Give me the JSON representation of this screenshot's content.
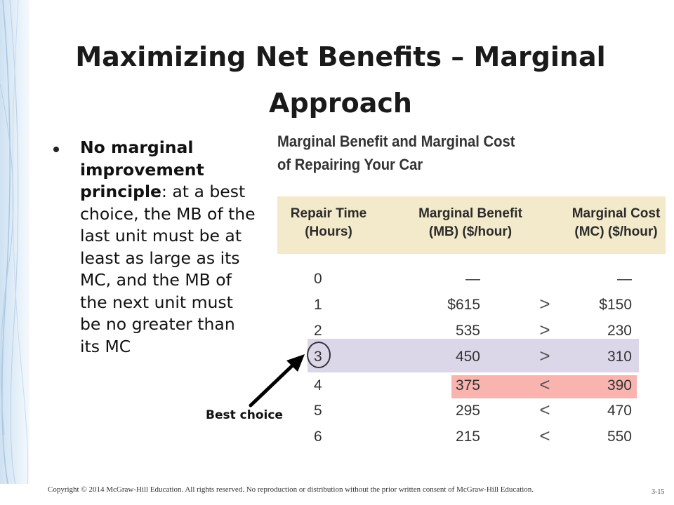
{
  "slide": {
    "title_line1": "Maximizing Net Benefits – Marginal",
    "title_line2": "Approach",
    "bullet": {
      "bold_part": "No marginal improvement principle",
      "rest": ": at a best choice, the MB of the last unit must be at least as large as its MC, and the MB of the next unit must be no greater than its MC"
    },
    "annotation": "Best choice",
    "copyright": "Copyright © 2014 McGraw-Hill Education. All rights reserved. No reproduction or distribution without the prior written consent of McGraw-Hill Education.",
    "page_number": "3-15"
  },
  "table": {
    "title_line1": "Marginal Benefit and Marginal Cost",
    "title_line2": "of Repairing Your Car",
    "headers": {
      "time_line1": "Repair Time",
      "time_line2": "(Hours)",
      "mb_line1": "Marginal Benefit",
      "mb_line2": "(MB) ($/hour)",
      "mc_line1": "Marginal Cost",
      "mc_line2": "(MC) ($/hour)"
    },
    "rows": [
      {
        "time": "0",
        "mb": "—",
        "op": "",
        "mc": "—"
      },
      {
        "time": "1",
        "mb": "$615",
        "op": ">",
        "mc": "$150"
      },
      {
        "time": "2",
        "mb": "535",
        "op": ">",
        "mc": "230"
      },
      {
        "time": "3",
        "mb": "450",
        "op": ">",
        "mc": "310"
      },
      {
        "time": "4",
        "mb": "375",
        "op": "<",
        "mc": "390"
      },
      {
        "time": "5",
        "mb": "295",
        "op": "<",
        "mc": "470"
      },
      {
        "time": "6",
        "mb": "215",
        "op": "<",
        "mc": "550"
      }
    ],
    "highlight_colors": {
      "best_row": "#dcd6e9",
      "next_row": "#f9b4b0",
      "header": "#f3eacb"
    }
  }
}
